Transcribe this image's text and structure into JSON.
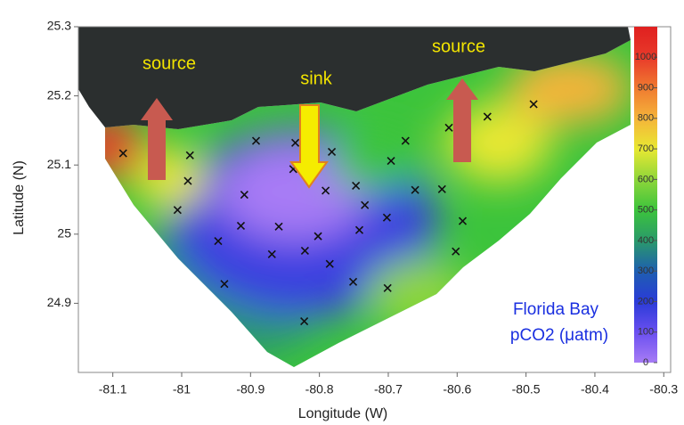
{
  "chart_data": {
    "type": "contour-map",
    "xlabel": "Longitude (W)",
    "ylabel": "Latitude (N)",
    "xlim": [
      -81.15,
      -80.29
    ],
    "ylim": [
      24.8,
      25.3
    ],
    "xticks": [
      -81.1,
      -81,
      -80.9,
      -80.8,
      -80.7,
      -80.6,
      -80.5,
      -80.4,
      -80.3
    ],
    "yticks": [
      24.9,
      25,
      25.1,
      25.2,
      25.3
    ],
    "colorbar": {
      "lim": [
        0,
        1100
      ],
      "ticks": [
        0,
        100,
        200,
        300,
        400,
        500,
        600,
        700,
        800,
        900,
        1000
      ],
      "colors": [
        "#a77cf5",
        "#6a4ff0",
        "#2a3bd8",
        "#1e5fb0",
        "#2a9a6a",
        "#3cc43c",
        "#8ed63a",
        "#e8e832",
        "#f5b43a",
        "#f07a30",
        "#e83a2a",
        "#e02020"
      ]
    },
    "stations": [
      [
        -81.085,
        25.117
      ],
      [
        -80.988,
        25.114
      ],
      [
        -80.991,
        25.077
      ],
      [
        -81.006,
        25.035
      ],
      [
        -80.947,
        24.99
      ],
      [
        -80.938,
        24.928
      ],
      [
        -80.892,
        25.135
      ],
      [
        -80.909,
        25.057
      ],
      [
        -80.914,
        25.012
      ],
      [
        -80.859,
        25.011
      ],
      [
        -80.869,
        24.971
      ],
      [
        -80.835,
        25.132
      ],
      [
        -80.838,
        25.094
      ],
      [
        -80.782,
        25.119
      ],
      [
        -80.791,
        25.063
      ],
      [
        -80.802,
        24.997
      ],
      [
        -80.821,
        24.976
      ],
      [
        -80.785,
        24.957
      ],
      [
        -80.822,
        24.874
      ],
      [
        -80.747,
        25.07
      ],
      [
        -80.742,
        25.006
      ],
      [
        -80.751,
        24.931
      ],
      [
        -80.702,
        25.024
      ],
      [
        -80.701,
        24.922
      ],
      [
        -80.675,
        25.135
      ],
      [
        -80.661,
        25.064
      ],
      [
        -80.622,
        25.065
      ],
      [
        -80.592,
        25.019
      ],
      [
        -80.602,
        24.975
      ],
      [
        -80.612,
        25.154
      ],
      [
        -80.556,
        25.17
      ],
      [
        -80.489,
        25.188
      ],
      [
        -80.696,
        25.106
      ],
      [
        -80.734,
        25.042
      ]
    ],
    "annotations": [
      "source",
      "sink",
      "source",
      "Florida Bay",
      "pCO2 (μatm)"
    ]
  }
}
